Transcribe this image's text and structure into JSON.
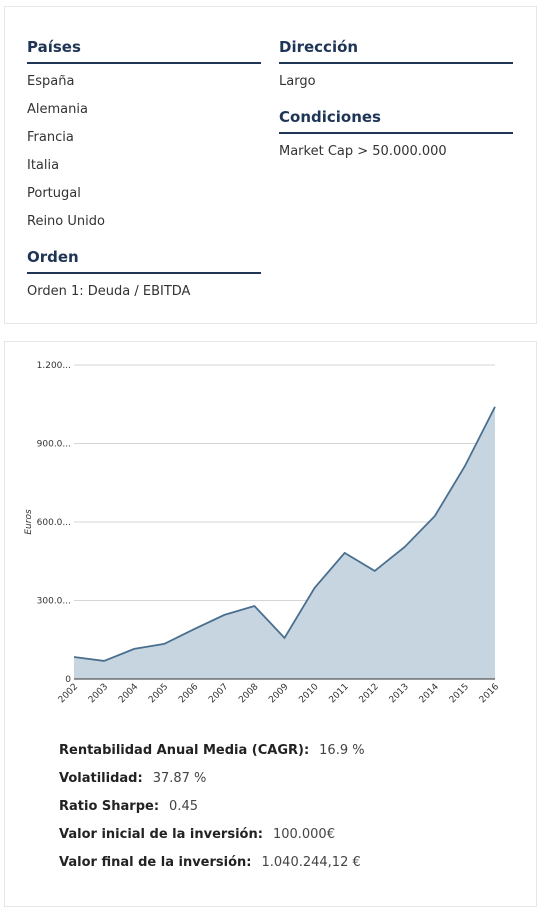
{
  "filters": {
    "paises": {
      "title": "Países",
      "items": [
        "España",
        "Alemania",
        "Francia",
        "Italia",
        "Portugal",
        "Reino Unido"
      ]
    },
    "orden": {
      "title": "Orden",
      "items": [
        "Orden 1: Deuda / EBITDA"
      ]
    },
    "direccion": {
      "title": "Dirección",
      "items": [
        "Largo"
      ]
    },
    "condiciones": {
      "title": "Condiciones",
      "items": [
        "Market Cap > 50.000.000"
      ]
    }
  },
  "chart_data": {
    "type": "area",
    "y_label": "Euros",
    "categories": [
      "2002",
      "2003",
      "2004",
      "2005",
      "2006",
      "2007",
      "2008",
      "2009",
      "2010",
      "2011",
      "2012",
      "2013",
      "2014",
      "2015",
      "2016"
    ],
    "values": [
      84000,
      69000,
      115000,
      134000,
      191000,
      245000,
      279000,
      157000,
      348000,
      482000,
      413000,
      505000,
      623000,
      814000,
      1040244
    ],
    "color": "#4a6f8f",
    "fill": "#c7d5e1",
    "ylim": [
      0,
      1200000
    ],
    "yticks": [
      0,
      {
        "value": 300000,
        "label": "300.0..."
      },
      {
        "value": 600000,
        "label": "600.0..."
      },
      {
        "value": 900000,
        "label": "900.0..."
      },
      {
        "value": 1200000,
        "label": "1.200..."
      }
    ],
    "grid": true
  },
  "stats": [
    {
      "label": "Rentabilidad Anual Media (CAGR):",
      "value": "16.9 %"
    },
    {
      "label": "Volatilidad:",
      "value": "37.87 %"
    },
    {
      "label": "Ratio Sharpe:",
      "value": "0.45"
    },
    {
      "label": "Valor inicial de la inversión:",
      "value": "100.000€"
    },
    {
      "label": "Valor final de la inversión:",
      "value": "1.040.244,12 €"
    }
  ]
}
